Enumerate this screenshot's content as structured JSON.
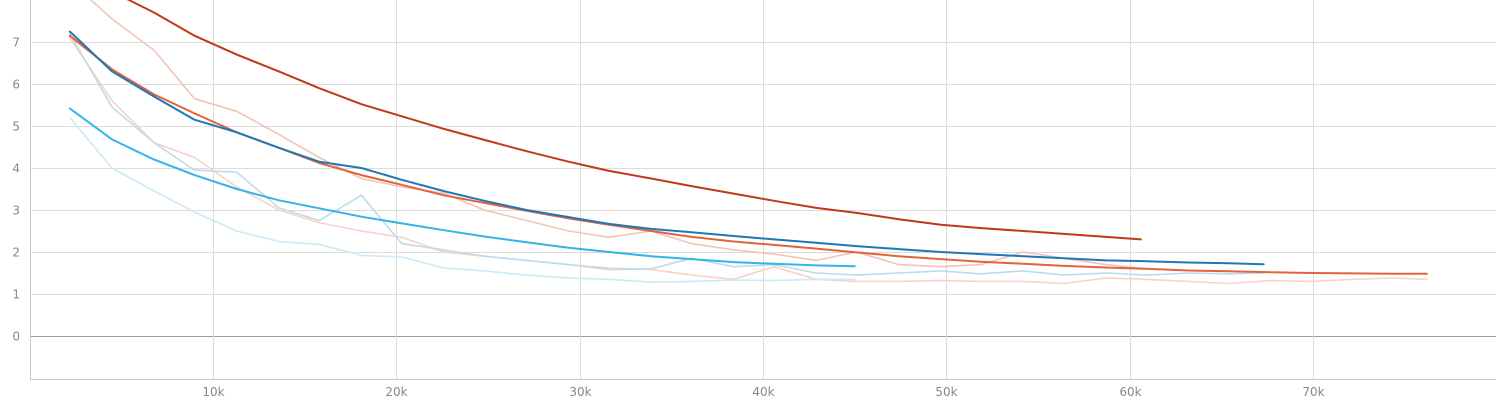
{
  "chart_data": {
    "type": "line",
    "xlim": [
      0,
      80000
    ],
    "ylim": [
      -1,
      8
    ],
    "x_ticks": [
      10000,
      20000,
      30000,
      40000,
      50000,
      60000,
      70000
    ],
    "x_tick_labels": [
      "10k",
      "20k",
      "30k",
      "40k",
      "50k",
      "60k",
      "70k"
    ],
    "y_ticks": [
      0,
      1,
      2,
      3,
      4,
      5,
      6,
      7
    ],
    "y_tick_labels": [
      "0",
      "1",
      "2",
      "3",
      "4",
      "5",
      "6",
      "7"
    ],
    "grid": true,
    "series": [
      {
        "kind": "raw",
        "color": "#f2c4b7",
        "x": [
          2200,
          4500,
          6800,
          9000,
          11300,
          13600,
          15800,
          18100,
          20300,
          22600,
          24800,
          27100,
          29400,
          31600,
          33900,
          36100,
          38400,
          40600,
          42900,
          45100,
          47400,
          49700,
          51900,
          54200,
          56400,
          58700,
          60900
        ],
        "y": [
          8.45,
          7.55,
          6.8,
          5.65,
          5.35,
          4.8,
          4.25,
          3.75,
          3.55,
          3.4,
          3.0,
          2.75,
          2.5,
          2.35,
          2.5,
          2.2,
          2.05,
          1.95,
          1.8,
          2.0,
          1.7,
          1.65,
          1.7,
          2.0,
          1.85,
          1.7,
          1.6
        ]
      },
      {
        "kind": "raw",
        "color": "#f7d2c6",
        "x": [
          2200,
          4500,
          6800,
          9000,
          11300,
          13600,
          15800,
          18100,
          20300,
          22600,
          24800,
          27100,
          29400,
          31600,
          33900,
          36100,
          38400,
          40600,
          42900,
          45100,
          47400,
          49700,
          51900,
          54200,
          56400,
          58700,
          60900,
          63200,
          65400,
          67700,
          69900,
          72200,
          74400,
          76200
        ],
        "y": [
          7.1,
          5.6,
          4.6,
          4.25,
          3.55,
          3.0,
          2.7,
          2.5,
          2.35,
          2.0,
          1.9,
          1.8,
          1.7,
          1.62,
          1.58,
          1.45,
          1.35,
          1.65,
          1.35,
          1.3,
          1.3,
          1.32,
          1.3,
          1.3,
          1.25,
          1.38,
          1.35,
          1.3,
          1.25,
          1.32,
          1.3,
          1.35,
          1.38,
          1.35
        ]
      },
      {
        "kind": "raw",
        "color": "#bcdcee",
        "x": [
          2200,
          4500,
          6800,
          9000,
          11300,
          13600,
          15800,
          18100,
          20300,
          22600,
          24800,
          27100,
          29400,
          31600,
          33900,
          36100,
          38400,
          40600,
          42900,
          45100,
          47400,
          49700,
          51900,
          54200,
          56400,
          58700,
          60900,
          63200,
          65400,
          67300
        ],
        "y": [
          7.2,
          5.45,
          4.6,
          3.95,
          3.9,
          3.05,
          2.75,
          3.35,
          2.2,
          2.05,
          1.9,
          1.8,
          1.7,
          1.58,
          1.6,
          1.85,
          1.65,
          1.7,
          1.5,
          1.45,
          1.5,
          1.55,
          1.48,
          1.55,
          1.45,
          1.5,
          1.45,
          1.5,
          1.48,
          1.5
        ]
      },
      {
        "kind": "raw",
        "color": "#cce9f7",
        "x": [
          2200,
          4500,
          6800,
          9000,
          11300,
          13600,
          15800,
          18100,
          20300,
          22600,
          24800,
          27100,
          29400,
          31600,
          33900,
          36100,
          38400,
          40600,
          42900,
          45000
        ],
        "y": [
          5.2,
          4.0,
          3.45,
          2.95,
          2.5,
          2.25,
          2.18,
          1.92,
          1.88,
          1.62,
          1.55,
          1.45,
          1.38,
          1.35,
          1.28,
          1.3,
          1.33,
          1.32,
          1.35,
          1.35
        ]
      },
      {
        "kind": "smoothed",
        "color": "#c1391a",
        "x": [
          2200,
          4500,
          6800,
          9000,
          11300,
          13600,
          15800,
          18100,
          20300,
          22600,
          24800,
          27100,
          29400,
          31600,
          33900,
          36100,
          38400,
          40600,
          42900,
          45100,
          47400,
          49700,
          51900,
          54200,
          56400,
          58700,
          60600
        ],
        "y": [
          8.6,
          8.2,
          7.7,
          7.15,
          6.7,
          6.3,
          5.9,
          5.52,
          5.23,
          4.93,
          4.67,
          4.4,
          4.15,
          3.93,
          3.75,
          3.57,
          3.39,
          3.22,
          3.05,
          2.93,
          2.78,
          2.65,
          2.57,
          2.5,
          2.43,
          2.36,
          2.3
        ]
      },
      {
        "kind": "smoothed",
        "color": "#e2633a",
        "x": [
          2200,
          4500,
          6800,
          9000,
          11300,
          13600,
          15800,
          18100,
          20300,
          22600,
          24800,
          27100,
          29400,
          31600,
          33900,
          36100,
          38400,
          40600,
          42900,
          45100,
          47400,
          49700,
          51900,
          54200,
          56400,
          58700,
          60900,
          63200,
          65400,
          67700,
          69900,
          72200,
          74400,
          76200
        ],
        "y": [
          7.15,
          6.35,
          5.75,
          5.3,
          4.85,
          4.48,
          4.12,
          3.83,
          3.6,
          3.35,
          3.17,
          2.98,
          2.8,
          2.65,
          2.5,
          2.36,
          2.25,
          2.17,
          2.08,
          1.99,
          1.9,
          1.83,
          1.77,
          1.72,
          1.67,
          1.63,
          1.6,
          1.56,
          1.54,
          1.52,
          1.5,
          1.49,
          1.48,
          1.48
        ]
      },
      {
        "kind": "smoothed",
        "color": "#1f77b4",
        "x": [
          2200,
          4500,
          6800,
          9000,
          11300,
          13600,
          15800,
          18100,
          20300,
          22600,
          24800,
          27100,
          29400,
          31600,
          33900,
          36100,
          38400,
          40600,
          42900,
          45100,
          47400,
          49700,
          51900,
          54200,
          56400,
          58700,
          60900,
          63200,
          65400,
          67300
        ],
        "y": [
          7.25,
          6.3,
          5.7,
          5.15,
          4.85,
          4.48,
          4.15,
          4.0,
          3.72,
          3.45,
          3.22,
          3.0,
          2.83,
          2.67,
          2.55,
          2.47,
          2.38,
          2.3,
          2.22,
          2.14,
          2.07,
          2.0,
          1.95,
          1.9,
          1.85,
          1.8,
          1.78,
          1.75,
          1.73,
          1.71
        ]
      },
      {
        "kind": "smoothed",
        "color": "#33b4e8",
        "x": [
          2200,
          4500,
          6800,
          9000,
          11300,
          13600,
          15800,
          18100,
          20300,
          22600,
          24800,
          27100,
          29400,
          31600,
          33900,
          36100,
          38400,
          40600,
          42900,
          45000
        ],
        "y": [
          5.42,
          4.68,
          4.2,
          3.83,
          3.5,
          3.23,
          3.04,
          2.84,
          2.68,
          2.52,
          2.37,
          2.23,
          2.1,
          2.0,
          1.9,
          1.83,
          1.76,
          1.72,
          1.68,
          1.66
        ]
      }
    ]
  }
}
